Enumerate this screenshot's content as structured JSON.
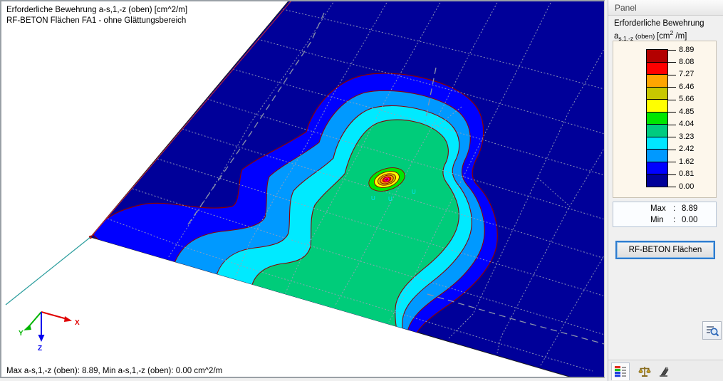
{
  "viewport": {
    "title_line1": "Erforderliche Bewehrung a-s,1,-z (oben) [cm^2/m]",
    "title_line2": "RF-BETON Flächen FA1 - ohne Glättungsbereich",
    "status_line": "Max a-s,1,-z (oben): 8.89, Min a-s,1,-z (oben): 0.00 cm^2/m",
    "axes": {
      "x": "X",
      "y": "Y",
      "z": "Z"
    },
    "node_labels": [
      "U",
      "U",
      "U"
    ]
  },
  "panel": {
    "title": "Panel",
    "result_title": "Erforderliche Bewehrung",
    "formula": {
      "base": "a",
      "sub": "s,1,-z",
      "suffix": " (oben) ",
      "unit_open": "[cm",
      "unit_sup": "2",
      "unit_close": " /m]"
    },
    "legend": {
      "values": [
        "8.89",
        "8.08",
        "7.27",
        "6.46",
        "5.66",
        "4.85",
        "4.04",
        "3.23",
        "2.42",
        "1.62",
        "0.81",
        "0.00"
      ],
      "colors": [
        "#b30000",
        "#ff0000",
        "#ffa500",
        "#c8c800",
        "#ffff00",
        "#00e600",
        "#00cc80",
        "#00e6ff",
        "#0099ff",
        "#0000ff",
        "#000099"
      ]
    },
    "max_label": "Max",
    "max_colon": ":",
    "max_value": "8.89",
    "min_label": "Min",
    "min_colon": ":",
    "min_value": "0.00",
    "button_label": "RF-BETON Flächen",
    "tabs": [
      {
        "name": "color-scale-tab"
      },
      {
        "name": "factors-tab"
      },
      {
        "name": "filter-tab"
      }
    ]
  }
}
